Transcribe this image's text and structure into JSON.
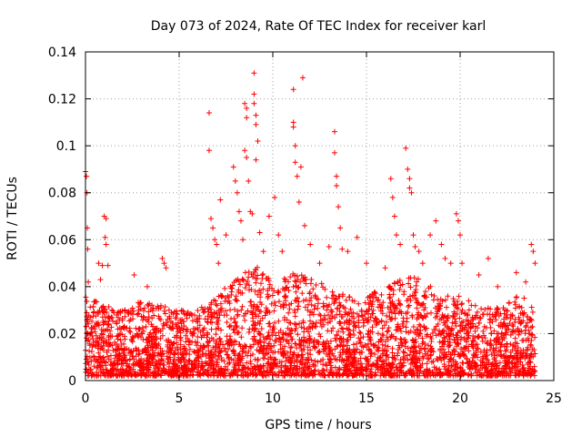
{
  "chart_data": {
    "type": "scatter",
    "title": "Day 073 of 2024, Rate Of TEC Index for receiver karl",
    "xlabel": "GPS time / hours",
    "ylabel": "ROTI / TECUs",
    "xlim": [
      0,
      25
    ],
    "ylim": [
      0,
      0.14
    ],
    "x_ticks": [
      0,
      5,
      10,
      15,
      20,
      25
    ],
    "x_tick_labels": [
      "0",
      "5",
      "10",
      "15",
      "20",
      "25"
    ],
    "y_ticks": [
      0,
      0.02,
      0.04,
      0.06,
      0.08,
      0.1,
      0.12,
      0.14
    ],
    "y_tick_labels": [
      "0",
      "0.02",
      "0.04",
      "0.06",
      "0.08",
      "0.1",
      "0.12",
      "0.14"
    ],
    "grid": true,
    "marker": "+",
    "marker_color": "#ff0000",
    "series": [
      {
        "name": "ROTI",
        "points": [
          [
            0.0,
            0.089
          ],
          [
            0.05,
            0.087
          ],
          [
            0.08,
            0.08
          ],
          [
            0.1,
            0.065
          ],
          [
            0.12,
            0.056
          ],
          [
            0.15,
            0.042
          ],
          [
            0.7,
            0.05
          ],
          [
            0.9,
            0.049
          ],
          [
            1.0,
            0.07
          ],
          [
            1.1,
            0.069
          ],
          [
            1.05,
            0.061
          ],
          [
            1.1,
            0.058
          ],
          [
            1.2,
            0.049
          ],
          [
            0.8,
            0.043
          ],
          [
            2.6,
            0.045
          ],
          [
            3.3,
            0.04
          ],
          [
            4.1,
            0.052
          ],
          [
            4.2,
            0.05
          ],
          [
            4.3,
            0.048
          ],
          [
            6.6,
            0.114
          ],
          [
            6.6,
            0.098
          ],
          [
            6.7,
            0.069
          ],
          [
            6.8,
            0.065
          ],
          [
            6.9,
            0.06
          ],
          [
            7.0,
            0.058
          ],
          [
            7.1,
            0.05
          ],
          [
            7.2,
            0.077
          ],
          [
            7.5,
            0.062
          ],
          [
            7.9,
            0.091
          ],
          [
            8.0,
            0.085
          ],
          [
            8.1,
            0.08
          ],
          [
            8.2,
            0.072
          ],
          [
            8.3,
            0.068
          ],
          [
            8.4,
            0.06
          ],
          [
            8.5,
            0.098
          ],
          [
            8.6,
            0.095
          ],
          [
            8.5,
            0.118
          ],
          [
            8.6,
            0.116
          ],
          [
            8.6,
            0.112
          ],
          [
            8.7,
            0.085
          ],
          [
            8.8,
            0.072
          ],
          [
            8.9,
            0.071
          ],
          [
            9.0,
            0.131
          ],
          [
            9.0,
            0.122
          ],
          [
            9.0,
            0.118
          ],
          [
            9.1,
            0.113
          ],
          [
            9.1,
            0.109
          ],
          [
            9.2,
            0.102
          ],
          [
            9.1,
            0.094
          ],
          [
            9.3,
            0.063
          ],
          [
            9.5,
            0.055
          ],
          [
            9.8,
            0.07
          ],
          [
            10.1,
            0.078
          ],
          [
            10.3,
            0.062
          ],
          [
            10.5,
            0.055
          ],
          [
            11.1,
            0.124
          ],
          [
            11.1,
            0.11
          ],
          [
            11.1,
            0.108
          ],
          [
            11.2,
            0.1
          ],
          [
            11.2,
            0.093
          ],
          [
            11.3,
            0.087
          ],
          [
            11.5,
            0.091
          ],
          [
            11.6,
            0.129
          ],
          [
            11.4,
            0.076
          ],
          [
            11.7,
            0.066
          ],
          [
            12.0,
            0.058
          ],
          [
            12.5,
            0.05
          ],
          [
            13.0,
            0.057
          ],
          [
            13.3,
            0.106
          ],
          [
            13.3,
            0.097
          ],
          [
            13.4,
            0.087
          ],
          [
            13.4,
            0.083
          ],
          [
            13.5,
            0.074
          ],
          [
            13.6,
            0.065
          ],
          [
            13.7,
            0.056
          ],
          [
            14.0,
            0.055
          ],
          [
            14.5,
            0.061
          ],
          [
            15.0,
            0.05
          ],
          [
            16.0,
            0.048
          ],
          [
            16.3,
            0.086
          ],
          [
            16.4,
            0.078
          ],
          [
            16.5,
            0.07
          ],
          [
            16.6,
            0.062
          ],
          [
            16.8,
            0.058
          ],
          [
            17.1,
            0.099
          ],
          [
            17.2,
            0.09
          ],
          [
            17.3,
            0.086
          ],
          [
            17.3,
            0.082
          ],
          [
            17.4,
            0.08
          ],
          [
            17.5,
            0.062
          ],
          [
            17.6,
            0.057
          ],
          [
            17.8,
            0.055
          ],
          [
            18.0,
            0.05
          ],
          [
            18.4,
            0.062
          ],
          [
            18.7,
            0.068
          ],
          [
            19.0,
            0.058
          ],
          [
            19.2,
            0.052
          ],
          [
            19.5,
            0.05
          ],
          [
            19.8,
            0.071
          ],
          [
            19.9,
            0.068
          ],
          [
            20.0,
            0.062
          ],
          [
            20.1,
            0.05
          ],
          [
            21.0,
            0.045
          ],
          [
            21.5,
            0.052
          ],
          [
            22.0,
            0.04
          ],
          [
            23.0,
            0.046
          ],
          [
            23.5,
            0.042
          ],
          [
            23.8,
            0.058
          ],
          [
            23.9,
            0.055
          ],
          [
            24.0,
            0.05
          ]
        ],
        "baseline_band": {
          "x_range": [
            0,
            24
          ],
          "min": 0.002,
          "max_envelope": [
            [
              0,
              0.036
            ],
            [
              1,
              0.032
            ],
            [
              2,
              0.03
            ],
            [
              3,
              0.034
            ],
            [
              4,
              0.032
            ],
            [
              5,
              0.03
            ],
            [
              6,
              0.03
            ],
            [
              7,
              0.036
            ],
            [
              8,
              0.044
            ],
            [
              9,
              0.05
            ],
            [
              10,
              0.042
            ],
            [
              11,
              0.046
            ],
            [
              12,
              0.044
            ],
            [
              13,
              0.04
            ],
            [
              14,
              0.036
            ],
            [
              15,
              0.036
            ],
            [
              16,
              0.04
            ],
            [
              17,
              0.044
            ],
            [
              18,
              0.044
            ],
            [
              19,
              0.036
            ],
            [
              20,
              0.036
            ],
            [
              21,
              0.032
            ],
            [
              22,
              0.032
            ],
            [
              23,
              0.036
            ],
            [
              24,
              0.034
            ]
          ]
        }
      }
    ]
  }
}
